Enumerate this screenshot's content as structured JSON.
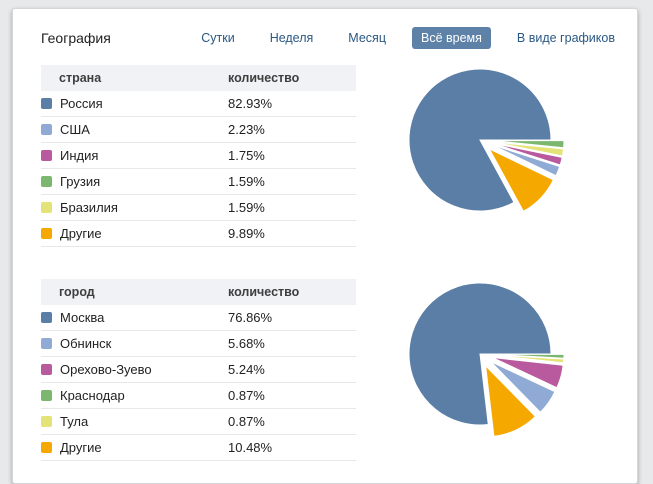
{
  "header": {
    "title": "География",
    "tabs": [
      {
        "label": "Сутки",
        "active": false
      },
      {
        "label": "Неделя",
        "active": false
      },
      {
        "label": "Месяц",
        "active": false
      },
      {
        "label": "Всё время",
        "active": true
      },
      {
        "label": "В виде графиков",
        "active": false
      }
    ]
  },
  "colors": {
    "accent_tab_bg": "#5e81a8",
    "link": "#2a5885",
    "table_header_bg": "#f0f2f5",
    "row_border": "#e7e8ec",
    "page_bg": "#e8e9eb",
    "card_bg": "#ffffff"
  },
  "chart_data": [
    {
      "type": "pie",
      "title": "страна",
      "value_label": "количество",
      "labels": [
        "Россия",
        "США",
        "Индия",
        "Грузия",
        "Бразилия",
        "Другие"
      ],
      "values": [
        82.93,
        2.23,
        1.75,
        1.59,
        1.59,
        9.89
      ],
      "unit": "%",
      "colors": [
        "#5a7ea6",
        "#8fabd5",
        "#b85a9d",
        "#7cb76f",
        "#e4e377",
        "#f5a800"
      ],
      "layout": {
        "start_angle_deg": 0,
        "direction": "clockwise",
        "slice_order": "ascending-by-value",
        "explode": "all-except-largest",
        "legend_position": "left-table"
      }
    },
    {
      "type": "pie",
      "title": "город",
      "value_label": "количество",
      "labels": [
        "Москва",
        "Обнинск",
        "Орехово-Зуево",
        "Краснодар",
        "Тула",
        "Другие"
      ],
      "values": [
        76.86,
        5.68,
        5.24,
        0.87,
        0.87,
        10.48
      ],
      "unit": "%",
      "colors": [
        "#5a7ea6",
        "#8fabd5",
        "#b85a9d",
        "#7cb76f",
        "#e4e377",
        "#f5a800"
      ],
      "layout": {
        "start_angle_deg": 0,
        "direction": "clockwise",
        "slice_order": "ascending-by-value",
        "explode": "all-except-largest",
        "legend_position": "left-table"
      }
    }
  ]
}
